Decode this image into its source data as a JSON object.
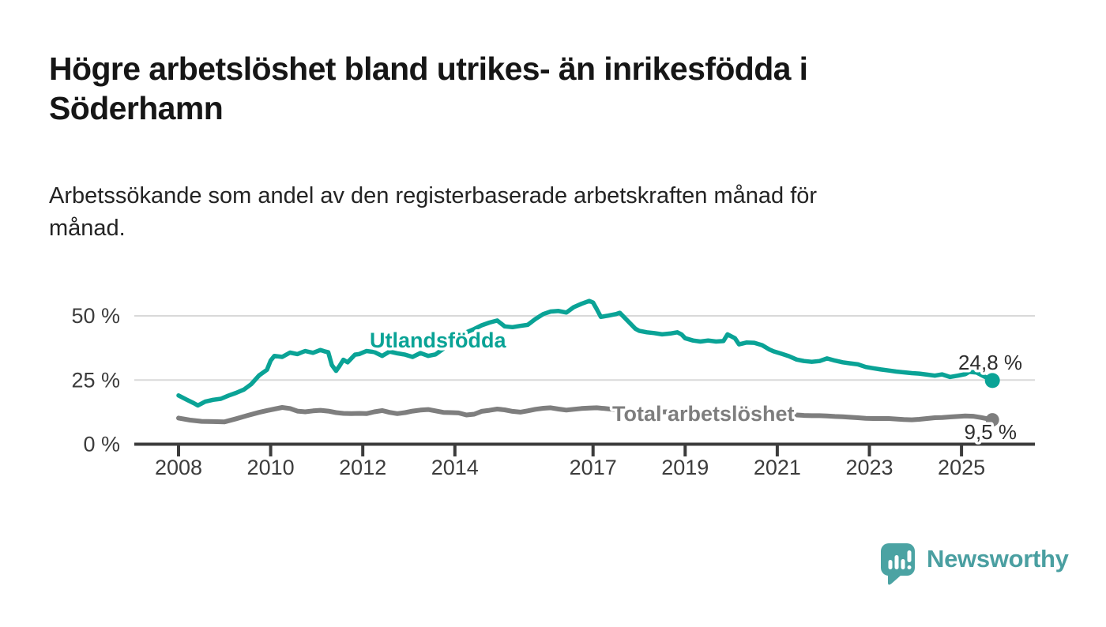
{
  "header": {
    "title_lines": [
      "Högre arbetslöshet bland utrikes- än inrikesfödda i",
      "Söderhamn"
    ],
    "subtitle_lines": [
      "Arbetssökande som andel av den registerbaserade arbetskraften månad för",
      "månad."
    ]
  },
  "chart_data": {
    "type": "line",
    "title": "Högre arbetslöshet bland utrikes- än inrikesfödda i Söderhamn",
    "subtitle": "Arbetssökande som andel av den registerbaserade arbetskraften månad för månad.",
    "unit": "%",
    "grid": "horizontal",
    "legend": "inline-labels",
    "x_axis": {
      "range": [
        2007.9,
        2025.95
      ],
      "ticks": [
        {
          "year": 2008,
          "label": "2008"
        },
        {
          "year": 2010,
          "label": "2010"
        },
        {
          "year": 2012,
          "label": "2012"
        },
        {
          "year": 2014,
          "label": "2014"
        },
        {
          "year": 2017,
          "label": "2017"
        },
        {
          "year": 2019,
          "label": "2019"
        },
        {
          "year": 2021,
          "label": "2021"
        },
        {
          "year": 2023,
          "label": "2023"
        },
        {
          "year": 2025,
          "label": "2025"
        }
      ]
    },
    "y_axis": {
      "range": [
        0,
        58
      ],
      "ticks": [
        {
          "value": 0,
          "label": "0 %"
        },
        {
          "value": 25,
          "label": "25 %"
        },
        {
          "value": 50,
          "label": "50 %"
        }
      ]
    },
    "series": [
      {
        "name": "Utlandsfödda",
        "color": "#0aa396",
        "end_label": "24,8 %",
        "end_value": 24.8,
        "points": [
          [
            2008.0,
            19.0
          ],
          [
            2008.17,
            17.4
          ],
          [
            2008.33,
            16.0
          ],
          [
            2008.42,
            15.1
          ],
          [
            2008.58,
            16.6
          ],
          [
            2008.75,
            17.3
          ],
          [
            2008.92,
            17.7
          ],
          [
            2009.08,
            18.9
          ],
          [
            2009.25,
            20.0
          ],
          [
            2009.42,
            21.3
          ],
          [
            2009.58,
            23.4
          ],
          [
            2009.75,
            26.8
          ],
          [
            2009.92,
            29.0
          ],
          [
            2010.0,
            32.6
          ],
          [
            2010.08,
            34.4
          ],
          [
            2010.25,
            34.0
          ],
          [
            2010.42,
            35.7
          ],
          [
            2010.58,
            35.1
          ],
          [
            2010.75,
            36.3
          ],
          [
            2010.92,
            35.6
          ],
          [
            2011.08,
            36.7
          ],
          [
            2011.17,
            36.2
          ],
          [
            2011.25,
            35.8
          ],
          [
            2011.33,
            30.8
          ],
          [
            2011.42,
            28.6
          ],
          [
            2011.5,
            30.6
          ],
          [
            2011.58,
            32.9
          ],
          [
            2011.67,
            31.9
          ],
          [
            2011.83,
            34.9
          ],
          [
            2011.92,
            35.1
          ],
          [
            2012.08,
            36.3
          ],
          [
            2012.25,
            35.9
          ],
          [
            2012.42,
            34.4
          ],
          [
            2012.58,
            36.1
          ],
          [
            2012.75,
            35.4
          ],
          [
            2012.92,
            34.9
          ],
          [
            2013.08,
            34.0
          ],
          [
            2013.25,
            35.5
          ],
          [
            2013.42,
            34.4
          ],
          [
            2013.58,
            35.0
          ],
          [
            2013.75,
            37.2
          ],
          [
            2013.92,
            39.8
          ],
          [
            2014.08,
            42.4
          ],
          [
            2014.25,
            43.6
          ],
          [
            2014.42,
            44.9
          ],
          [
            2014.58,
            46.3
          ],
          [
            2014.75,
            47.4
          ],
          [
            2014.92,
            48.2
          ],
          [
            2015.08,
            45.9
          ],
          [
            2015.25,
            45.6
          ],
          [
            2015.42,
            46.1
          ],
          [
            2015.58,
            46.5
          ],
          [
            2015.75,
            48.8
          ],
          [
            2015.92,
            50.7
          ],
          [
            2016.08,
            51.7
          ],
          [
            2016.25,
            51.9
          ],
          [
            2016.42,
            51.3
          ],
          [
            2016.58,
            53.4
          ],
          [
            2016.75,
            54.7
          ],
          [
            2016.92,
            55.8
          ],
          [
            2017.0,
            55.2
          ],
          [
            2017.08,
            52.6
          ],
          [
            2017.17,
            49.6
          ],
          [
            2017.33,
            50.1
          ],
          [
            2017.5,
            50.7
          ],
          [
            2017.58,
            51.2
          ],
          [
            2017.75,
            48.1
          ],
          [
            2017.92,
            45.0
          ],
          [
            2018.0,
            44.2
          ],
          [
            2018.17,
            43.6
          ],
          [
            2018.33,
            43.3
          ],
          [
            2018.5,
            42.8
          ],
          [
            2018.67,
            43.1
          ],
          [
            2018.83,
            43.6
          ],
          [
            2018.92,
            42.8
          ],
          [
            2019.0,
            41.3
          ],
          [
            2019.17,
            40.4
          ],
          [
            2019.33,
            40.0
          ],
          [
            2019.5,
            40.4
          ],
          [
            2019.67,
            40.0
          ],
          [
            2019.83,
            40.2
          ],
          [
            2019.92,
            42.8
          ],
          [
            2020.08,
            41.3
          ],
          [
            2020.17,
            38.9
          ],
          [
            2020.33,
            39.6
          ],
          [
            2020.5,
            39.5
          ],
          [
            2020.67,
            38.6
          ],
          [
            2020.83,
            36.9
          ],
          [
            2020.92,
            36.2
          ],
          [
            2021.08,
            35.3
          ],
          [
            2021.25,
            34.3
          ],
          [
            2021.42,
            33.0
          ],
          [
            2021.58,
            32.4
          ],
          [
            2021.75,
            32.1
          ],
          [
            2021.92,
            32.4
          ],
          [
            2022.08,
            33.4
          ],
          [
            2022.25,
            32.6
          ],
          [
            2022.42,
            31.9
          ],
          [
            2022.58,
            31.5
          ],
          [
            2022.75,
            31.1
          ],
          [
            2022.92,
            30.1
          ],
          [
            2023.08,
            29.6
          ],
          [
            2023.25,
            29.1
          ],
          [
            2023.42,
            28.7
          ],
          [
            2023.58,
            28.3
          ],
          [
            2023.75,
            28.0
          ],
          [
            2023.92,
            27.7
          ],
          [
            2024.08,
            27.5
          ],
          [
            2024.25,
            27.1
          ],
          [
            2024.42,
            26.7
          ],
          [
            2024.58,
            27.2
          ],
          [
            2024.75,
            26.2
          ],
          [
            2024.92,
            26.7
          ],
          [
            2025.08,
            27.3
          ],
          [
            2025.17,
            28.2
          ],
          [
            2025.33,
            27.9
          ],
          [
            2025.5,
            26.3
          ],
          [
            2025.67,
            24.8
          ]
        ]
      },
      {
        "name": "Total arbetslöshet",
        "color": "#7e7e7e",
        "end_label": "9,5 %",
        "end_value": 9.5,
        "points": [
          [
            2008.0,
            10.2
          ],
          [
            2008.25,
            9.4
          ],
          [
            2008.5,
            8.9
          ],
          [
            2008.75,
            8.8
          ],
          [
            2009.0,
            8.7
          ],
          [
            2009.25,
            9.9
          ],
          [
            2009.5,
            11.2
          ],
          [
            2009.75,
            12.4
          ],
          [
            2009.92,
            13.1
          ],
          [
            2010.08,
            13.7
          ],
          [
            2010.25,
            14.3
          ],
          [
            2010.42,
            13.9
          ],
          [
            2010.58,
            12.9
          ],
          [
            2010.75,
            12.6
          ],
          [
            2010.92,
            13.0
          ],
          [
            2011.08,
            13.2
          ],
          [
            2011.25,
            12.9
          ],
          [
            2011.42,
            12.3
          ],
          [
            2011.58,
            12.0
          ],
          [
            2011.75,
            11.9
          ],
          [
            2011.92,
            12.0
          ],
          [
            2012.08,
            11.9
          ],
          [
            2012.25,
            12.6
          ],
          [
            2012.42,
            13.1
          ],
          [
            2012.58,
            12.4
          ],
          [
            2012.75,
            11.9
          ],
          [
            2012.92,
            12.3
          ],
          [
            2013.08,
            12.9
          ],
          [
            2013.25,
            13.3
          ],
          [
            2013.42,
            13.5
          ],
          [
            2013.58,
            13.0
          ],
          [
            2013.75,
            12.4
          ],
          [
            2013.92,
            12.3
          ],
          [
            2014.08,
            12.2
          ],
          [
            2014.25,
            11.4
          ],
          [
            2014.42,
            11.7
          ],
          [
            2014.58,
            12.8
          ],
          [
            2014.75,
            13.2
          ],
          [
            2014.92,
            13.7
          ],
          [
            2015.08,
            13.4
          ],
          [
            2015.25,
            12.8
          ],
          [
            2015.42,
            12.5
          ],
          [
            2015.58,
            13.0
          ],
          [
            2015.75,
            13.6
          ],
          [
            2015.92,
            14.0
          ],
          [
            2016.08,
            14.2
          ],
          [
            2016.25,
            13.7
          ],
          [
            2016.42,
            13.3
          ],
          [
            2016.58,
            13.6
          ],
          [
            2016.75,
            13.9
          ],
          [
            2016.92,
            14.1
          ],
          [
            2017.08,
            14.2
          ],
          [
            2017.25,
            13.9
          ],
          [
            2017.42,
            13.6
          ],
          [
            2017.58,
            13.3
          ],
          [
            2017.75,
            13.1
          ],
          [
            2017.92,
            12.9
          ],
          [
            2018.08,
            13.0
          ],
          [
            2018.25,
            12.7
          ],
          [
            2018.42,
            12.5
          ],
          [
            2018.58,
            12.6
          ],
          [
            2018.75,
            12.7
          ],
          [
            2018.92,
            12.5
          ],
          [
            2019.08,
            12.2
          ],
          [
            2019.25,
            12.0
          ],
          [
            2019.42,
            11.9
          ],
          [
            2019.58,
            12.1
          ],
          [
            2019.75,
            12.3
          ],
          [
            2019.92,
            12.5
          ],
          [
            2020.08,
            12.7
          ],
          [
            2020.25,
            13.0
          ],
          [
            2020.42,
            12.8
          ],
          [
            2020.58,
            12.5
          ],
          [
            2020.75,
            12.2
          ],
          [
            2020.92,
            12.0
          ],
          [
            2021.08,
            11.8
          ],
          [
            2021.25,
            11.6
          ],
          [
            2021.42,
            11.4
          ],
          [
            2021.58,
            11.2
          ],
          [
            2021.75,
            11.1
          ],
          [
            2021.92,
            11.1
          ],
          [
            2022.08,
            11.0
          ],
          [
            2022.25,
            10.8
          ],
          [
            2022.42,
            10.7
          ],
          [
            2022.58,
            10.5
          ],
          [
            2022.75,
            10.3
          ],
          [
            2022.92,
            10.1
          ],
          [
            2023.08,
            10.0
          ],
          [
            2023.25,
            10.0
          ],
          [
            2023.42,
            10.0
          ],
          [
            2023.58,
            9.8
          ],
          [
            2023.75,
            9.6
          ],
          [
            2023.92,
            9.5
          ],
          [
            2024.08,
            9.7
          ],
          [
            2024.25,
            10.0
          ],
          [
            2024.42,
            10.3
          ],
          [
            2024.58,
            10.4
          ],
          [
            2024.75,
            10.6
          ],
          [
            2024.92,
            10.8
          ],
          [
            2025.08,
            11.0
          ],
          [
            2025.25,
            10.9
          ],
          [
            2025.42,
            10.4
          ],
          [
            2025.67,
            9.5
          ]
        ]
      }
    ]
  },
  "footer": {
    "brand": "Newsworthy"
  },
  "colors": {
    "teal_line": "#0aa396",
    "gray_line": "#7e7e7e",
    "grid": "#d9d9d9",
    "axis": "#3c3c3c",
    "title_text": "#161616",
    "annotation_text": "#2d2d2d",
    "logo_teal": "#4ba3a3"
  }
}
